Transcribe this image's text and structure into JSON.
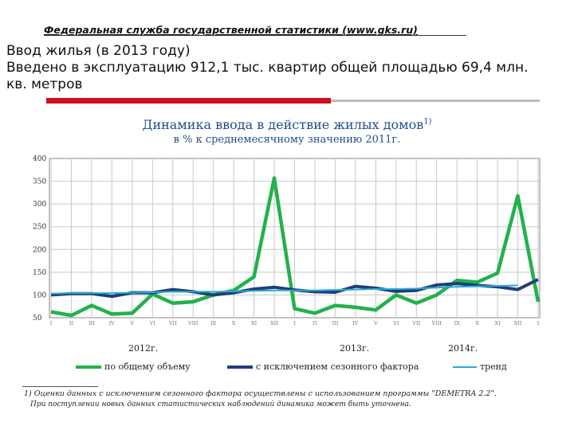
{
  "header": "Федеральная служба государственной статистики (www.gks.ru)",
  "title_line1": "Ввод жилья (в 2013 году)",
  "title_line2": "Введено в эксплуатацию 912,1 тыс. квартир общей площадью 69,4 млн.",
  "title_line3": "кв. метров",
  "footnote1": "1) Оценки данных с исключением сезонного фактора осуществлены с использованием программы \"DEMETRA 2.2\".",
  "footnote2": "При поступлении новых данных статистических наблюдений динамика может быть уточнена.",
  "colors": {
    "total": "#22b14c",
    "seasonal": "#1f3f78",
    "trend": "#2aa9d6",
    "grid": "#c8c8c8"
  },
  "chart_data": {
    "type": "line",
    "title": "Динамика ввода в действие жилых домов",
    "title_sup": "1)",
    "subtitle": "в % к среднемесячному значению 2011г.",
    "x_tick_labels": [
      "I",
      "II",
      "III",
      "IV",
      "V",
      "VI",
      "VII",
      "VIII",
      "IX",
      "X",
      "XI",
      "XII",
      "I",
      "II",
      "III",
      "IV",
      "V",
      "VI",
      "VII",
      "VIII",
      "IX",
      "X",
      "XI",
      "XII",
      "I"
    ],
    "year_labels": [
      {
        "label": "2012г.",
        "month_index": 5.5
      },
      {
        "label": "2013г.",
        "month_index": 17.5
      },
      {
        "label": "2014г.",
        "month_index": 22
      }
    ],
    "ylim": [
      50,
      400
    ],
    "yticks": [
      50,
      100,
      150,
      200,
      250,
      300,
      350,
      400
    ],
    "grid": true,
    "legend_position": "bottom",
    "series": [
      {
        "name": "по общему объему",
        "values": [
          63,
          55,
          77,
          58,
          60,
          102,
          82,
          85,
          100,
          110,
          140,
          357,
          70,
          60,
          77,
          73,
          67,
          100,
          82,
          100,
          132,
          128,
          148,
          318,
          85
        ]
      },
      {
        "name": "с исключением сезонного фактора",
        "values": [
          100,
          103,
          103,
          97,
          105,
          105,
          112,
          107,
          100,
          105,
          113,
          117,
          111,
          107,
          106,
          119,
          115,
          108,
          110,
          122,
          125,
          121,
          118,
          112,
          134
        ]
      },
      {
        "name": "тренд",
        "values": [
          103,
          104,
          104,
          104,
          105,
          106,
          107,
          107,
          107,
          108,
          109,
          110,
          110,
          110,
          111,
          112,
          113,
          113,
          114,
          116,
          118,
          119,
          120,
          121,
          null
        ]
      }
    ]
  }
}
